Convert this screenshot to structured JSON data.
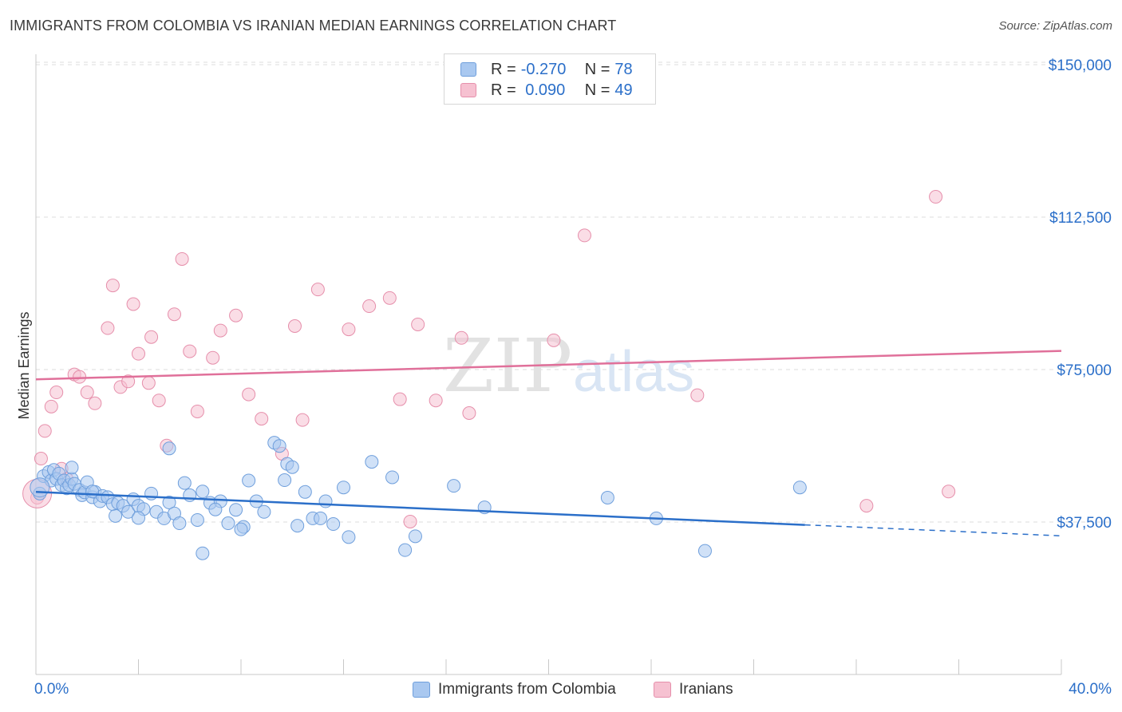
{
  "title": "IMMIGRANTS FROM COLOMBIA VS IRANIAN MEDIAN EARNINGS CORRELATION CHART",
  "source": "Source: ZipAtlas.com",
  "watermark": {
    "zip": "ZIP",
    "atlas": "atlas"
  },
  "stats": [
    {
      "r_label": "R =",
      "r_value": "-0.270",
      "n_label": "N =",
      "n_value": "78"
    },
    {
      "r_label": "R =",
      "r_value": " 0.090",
      "n_label": "N =",
      "n_value": "49"
    }
  ],
  "legend": [
    {
      "label": "Immigrants from Colombia"
    },
    {
      "label": "Iranians"
    }
  ],
  "colors": {
    "blue_fill": "#a9c8f0",
    "blue_stroke": "#6f9fdc",
    "blue_line": "#2b6fc9",
    "pink_fill": "#f6c1d1",
    "pink_stroke": "#e68fab",
    "pink_line": "#e0709a",
    "axis_label": "#2b6fc9",
    "grid": "#dcdcdc"
  },
  "chart_data": {
    "type": "scatter",
    "title": "IMMIGRANTS FROM COLOMBIA VS IRANIAN MEDIAN EARNINGS CORRELATION CHART",
    "xlabel": "",
    "ylabel": "Median Earnings",
    "xlim": [
      0,
      40
    ],
    "ylim": [
      0,
      155000
    ],
    "x_tick_labels": [
      "0.0%",
      "40.0%"
    ],
    "y_ticks": [
      37500,
      75000,
      112500,
      150000
    ],
    "y_tick_labels": [
      "$37,500",
      "$75,000",
      "$112,500",
      "$150,000"
    ],
    "grid": true,
    "legend_position": "bottom-center",
    "series": [
      {
        "name": "Immigrants from Colombia",
        "r": -0.27,
        "n": 78,
        "trend": {
          "x": [
            0,
            30.0,
            40.0
          ],
          "y": [
            44900,
            36800,
            34100
          ],
          "solid_until": 30.0
        },
        "points": [
          [
            0.15,
            44500
          ],
          [
            0.3,
            48800
          ],
          [
            0.5,
            49800
          ],
          [
            0.6,
            47700
          ],
          [
            0.7,
            50300
          ],
          [
            0.8,
            48100
          ],
          [
            0.9,
            49400
          ],
          [
            1.0,
            46600
          ],
          [
            1.1,
            47700
          ],
          [
            1.2,
            45800
          ],
          [
            1.3,
            46600
          ],
          [
            1.4,
            48100
          ],
          [
            1.5,
            46900
          ],
          [
            1.7,
            45400
          ],
          [
            1.8,
            44100
          ],
          [
            1.9,
            44800
          ],
          [
            2.0,
            47300
          ],
          [
            2.2,
            43600
          ],
          [
            2.3,
            44900
          ],
          [
            2.5,
            42600
          ],
          [
            2.6,
            43900
          ],
          [
            2.8,
            43600
          ],
          [
            3.0,
            41900
          ],
          [
            3.2,
            42200
          ],
          [
            3.4,
            41500
          ],
          [
            3.6,
            40000
          ],
          [
            3.8,
            43100
          ],
          [
            4.0,
            41500
          ],
          [
            4.2,
            40700
          ],
          [
            4.5,
            44500
          ],
          [
            4.7,
            40000
          ],
          [
            5.0,
            38400
          ],
          [
            5.2,
            42300
          ],
          [
            5.4,
            39600
          ],
          [
            5.6,
            37200
          ],
          [
            5.8,
            47100
          ],
          [
            6.0,
            44100
          ],
          [
            6.3,
            38000
          ],
          [
            6.5,
            45000
          ],
          [
            6.8,
            42200
          ],
          [
            7.2,
            42600
          ],
          [
            7.5,
            37200
          ],
          [
            7.8,
            40500
          ],
          [
            8.1,
            36300
          ],
          [
            8.3,
            47700
          ],
          [
            8.6,
            42600
          ],
          [
            8.9,
            40000
          ],
          [
            9.3,
            57000
          ],
          [
            9.5,
            56200
          ],
          [
            9.8,
            51800
          ],
          [
            10.0,
            51000
          ],
          [
            10.2,
            36600
          ],
          [
            10.5,
            44900
          ],
          [
            10.8,
            38400
          ],
          [
            11.1,
            38400
          ],
          [
            11.3,
            42600
          ],
          [
            11.6,
            37000
          ],
          [
            12.0,
            46000
          ],
          [
            12.2,
            33800
          ],
          [
            13.1,
            52300
          ],
          [
            13.9,
            48500
          ],
          [
            14.4,
            30600
          ],
          [
            14.8,
            34000
          ],
          [
            16.3,
            46400
          ],
          [
            17.5,
            41100
          ],
          [
            22.3,
            43500
          ],
          [
            24.2,
            38400
          ],
          [
            26.1,
            30400
          ],
          [
            29.8,
            46000
          ],
          [
            5.2,
            55600
          ],
          [
            2.2,
            45000
          ],
          [
            4.0,
            38500
          ],
          [
            6.5,
            29800
          ],
          [
            8.0,
            35700
          ],
          [
            9.7,
            47800
          ],
          [
            3.1,
            39000
          ],
          [
            7.0,
            40600
          ],
          [
            1.4,
            50900
          ]
        ]
      },
      {
        "name": "Iranians",
        "r": 0.09,
        "n": 49,
        "trend": {
          "x": [
            0,
            40.0
          ],
          "y": [
            72600,
            79600
          ],
          "solid_until": 40.0
        },
        "points": [
          [
            0.05,
            43500
          ],
          [
            0.2,
            53100
          ],
          [
            0.35,
            59900
          ],
          [
            0.6,
            65900
          ],
          [
            0.8,
            69400
          ],
          [
            1.0,
            50600
          ],
          [
            1.2,
            48100
          ],
          [
            1.5,
            73800
          ],
          [
            1.7,
            73200
          ],
          [
            2.0,
            69400
          ],
          [
            2.3,
            66700
          ],
          [
            2.8,
            85200
          ],
          [
            3.0,
            95700
          ],
          [
            3.3,
            70700
          ],
          [
            3.6,
            72100
          ],
          [
            3.8,
            91100
          ],
          [
            4.0,
            78900
          ],
          [
            4.4,
            71700
          ],
          [
            4.5,
            83000
          ],
          [
            4.8,
            67400
          ],
          [
            5.1,
            56300
          ],
          [
            5.4,
            88600
          ],
          [
            5.7,
            102200
          ],
          [
            6.0,
            79500
          ],
          [
            6.3,
            64700
          ],
          [
            6.9,
            77900
          ],
          [
            7.2,
            84600
          ],
          [
            7.8,
            88300
          ],
          [
            8.3,
            68900
          ],
          [
            8.8,
            62900
          ],
          [
            9.6,
            54300
          ],
          [
            10.1,
            85700
          ],
          [
            10.4,
            62600
          ],
          [
            11.0,
            94700
          ],
          [
            12.2,
            84900
          ],
          [
            13.0,
            90600
          ],
          [
            13.8,
            92600
          ],
          [
            14.2,
            67700
          ],
          [
            14.6,
            37600
          ],
          [
            14.9,
            86100
          ],
          [
            15.6,
            67400
          ],
          [
            16.6,
            82800
          ],
          [
            16.9,
            64300
          ],
          [
            20.2,
            82200
          ],
          [
            21.4,
            108000
          ],
          [
            25.8,
            68700
          ],
          [
            32.4,
            41500
          ],
          [
            35.1,
            117500
          ],
          [
            35.6,
            45000
          ]
        ]
      }
    ]
  }
}
